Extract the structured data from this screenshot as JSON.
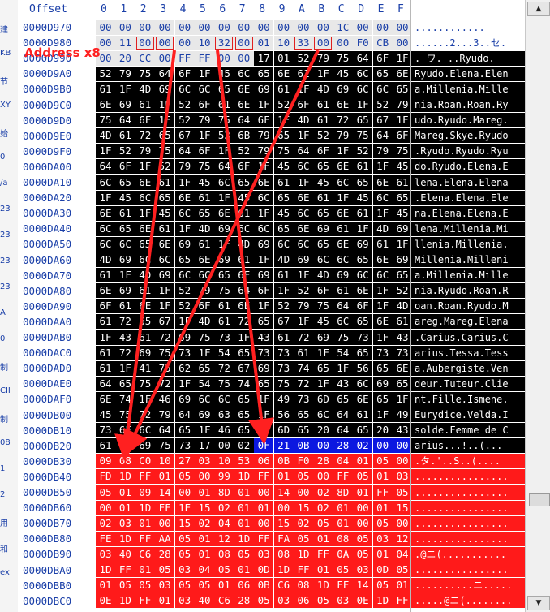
{
  "sidebar_labels": [
    "建",
    "KB",
    "节",
    "XY",
    "始",
    "0",
    "/a",
    "23",
    "23",
    "23",
    "23",
    "A",
    "0",
    "制",
    "CII",
    "制",
    "08",
    "1",
    "2",
    "用",
    "和",
    "ex"
  ],
  "header": {
    "offset_label": "Offset",
    "columns": [
      "0",
      "1",
      "2",
      "3",
      "4",
      "5",
      "6",
      "7",
      "8",
      "9",
      "A",
      "B",
      "C",
      "D",
      "E",
      "F"
    ]
  },
  "annotation": "Address x8",
  "colors": {
    "red": "#ff1a1a",
    "black": "#000000",
    "blue_selection": "#0c18e0",
    "arrow": "#ff2020",
    "address_blue": "#1a3fa8"
  },
  "scrollbar": {
    "up_icon": "up-arrow-icon",
    "down_icon": "down-arrow-icon"
  },
  "rows": [
    {
      "addr": "0000D970",
      "bytes": "00 00 00 00 00 00 00 00 00 00 00 00 1C 00 00 00",
      "ascii": "............",
      "style": "w"
    },
    {
      "addr": "0000D980",
      "bytes": "00 11 00 00 00 10 32 00 01 10 33 00 00 F0 CB 00",
      "ascii": "......2...3..セ.",
      "style": "w"
    },
    {
      "addr": "0000D990",
      "bytes": "00 20 CC 00 FF FF 00 00 17 01 52 79 75 64 6F 1F",
      "ascii": ". ワ.   ..Ryudo.",
      "style": "mixed990"
    },
    {
      "addr": "0000D9A0",
      "bytes": "52 79 75 64 6F 1F 45 6C 65 6E 61 1F 45 6C 65 6E",
      "ascii": "Ryudo.Elena.Elen",
      "style": "k"
    },
    {
      "addr": "0000D9B0",
      "bytes": "61 1F 4D 69 6C 6C 65 6E 69 61 1F 4D 69 6C 6C 65",
      "ascii": "a.Millenia.Mille",
      "style": "k"
    },
    {
      "addr": "0000D9C0",
      "bytes": "6E 69 61 1F 52 6F 61 6E 1F 52 6F 61 6E 1F 52 79",
      "ascii": "nia.Roan.Roan.Ry",
      "style": "k"
    },
    {
      "addr": "0000D9D0",
      "bytes": "75 64 6F 1F 52 79 75 64 6F 1F 4D 61 72 65 67 1F",
      "ascii": "udo.Ryudo.Mareg.",
      "style": "k"
    },
    {
      "addr": "0000D9E0",
      "bytes": "4D 61 72 65 67 1F 53 6B 79 65 1F 52 79 75 64 6F",
      "ascii": "Mareg.Skye.Ryudo",
      "style": "k"
    },
    {
      "addr": "0000D9F0",
      "bytes": "1F 52 79 75 64 6F 1F 52 79 75 64 6F 1F 52 79 75",
      "ascii": ".Ryudo.Ryudo.Ryu",
      "style": "k"
    },
    {
      "addr": "0000DA00",
      "bytes": "64 6F 1F 52 79 75 64 6F 1F 45 6C 65 6E 61 1F 45",
      "ascii": "do.Ryudo.Elena.E",
      "style": "k"
    },
    {
      "addr": "0000DA10",
      "bytes": "6C 65 6E 61 1F 45 6C 65 6E 61 1F 45 6C 65 6E 61",
      "ascii": "lena.Elena.Elena",
      "style": "k"
    },
    {
      "addr": "0000DA20",
      "bytes": "1F 45 6C 65 6E 61 1F 45 6C 65 6E 61 1F 45 6C 65",
      "ascii": ".Elena.Elena.Ele",
      "style": "k"
    },
    {
      "addr": "0000DA30",
      "bytes": "6E 61 1F 45 6C 65 6E 61 1F 45 6C 65 6E 61 1F 45",
      "ascii": "na.Elena.Elena.E",
      "style": "k"
    },
    {
      "addr": "0000DA40",
      "bytes": "6C 65 6E 61 1F 4D 69 6C 6C 65 6E 69 61 1F 4D 69",
      "ascii": "lena.Millenia.Mi",
      "style": "k"
    },
    {
      "addr": "0000DA50",
      "bytes": "6C 6C 65 6E 69 61 1F 4D 69 6C 6C 65 6E 69 61 1F",
      "ascii": "llenia.Millenia.",
      "style": "k"
    },
    {
      "addr": "0000DA60",
      "bytes": "4D 69 6C 6C 65 6E 69 61 1F 4D 69 6C 6C 65 6E 69",
      "ascii": "Millenia.Milleni",
      "style": "k"
    },
    {
      "addr": "0000DA70",
      "bytes": "61 1F 4D 69 6C 6C 65 6E 69 61 1F 4D 69 6C 6C 65",
      "ascii": "a.Millenia.Mille",
      "style": "k"
    },
    {
      "addr": "0000DA80",
      "bytes": "6E 69 61 1F 52 79 75 64 6F 1F 52 6F 61 6E 1F 52",
      "ascii": "nia.Ryudo.Roan.R",
      "style": "k"
    },
    {
      "addr": "0000DA90",
      "bytes": "6F 61 6E 1F 52 6F 61 6E 1F 52 79 75 64 6F 1F 4D",
      "ascii": "oan.Roan.Ryudo.M",
      "style": "k"
    },
    {
      "addr": "0000DAA0",
      "bytes": "61 72 65 67 1F 4D 61 72 65 67 1F 45 6C 65 6E 61",
      "ascii": "areg.Mareg.Elena",
      "style": "k"
    },
    {
      "addr": "0000DAB0",
      "bytes": "1F 43 61 72 69 75 73 1F 43 61 72 69 75 73 1F 43",
      "ascii": ".Carius.Carius.C",
      "style": "k"
    },
    {
      "addr": "0000DAC0",
      "bytes": "61 72 69 75 73 1F 54 65 73 73 61 1F 54 65 73 73",
      "ascii": "arius.Tessa.Tess",
      "style": "k"
    },
    {
      "addr": "0000DAD0",
      "bytes": "61 1F 41 75 62 65 72 67 69 73 74 65 1F 56 65 6E",
      "ascii": "a.Aubergiste.Ven",
      "style": "k"
    },
    {
      "addr": "0000DAE0",
      "bytes": "64 65 75 72 1F 54 75 74 65 75 72 1F 43 6C 69 65",
      "ascii": "deur.Tuteur.Clie",
      "style": "k"
    },
    {
      "addr": "0000DAF0",
      "bytes": "6E 74 1F 46 69 6C 6C 65 1F 49 73 6D 65 6E 65 1F",
      "ascii": "nt.Fille.Ismene.",
      "style": "k"
    },
    {
      "addr": "0000DB00",
      "bytes": "45 75 72 79 64 69 63 65 1F 56 65 6C 64 61 1F 49",
      "ascii": "Eurydice.Velda.I",
      "style": "k"
    },
    {
      "addr": "0000DB10",
      "bytes": "73 6F 6C 64 65 1F 46 65 6D 6D 65 20 64 65 20 43",
      "ascii": "solde.Femme de C",
      "style": "k"
    },
    {
      "addr": "0000DB20",
      "bytes": "61 72 69 75 73 17 00 02 0F 21 0B 00 28 02 00 00",
      "ascii": "arius...!..(...",
      "style": "mixedB20"
    },
    {
      "addr": "0000DB30",
      "bytes": "09 08 C0 10 27 03 10 53 06 0B F0 28 04 01 05 00",
      "ascii": ".タ.'..S..(....",
      "style": "r"
    },
    {
      "addr": "0000DB40",
      "bytes": "FD 1D FF 01 05 00 99 1D FF 01 05 00 FF 05 01 03",
      "ascii": "................",
      "style": "r"
    },
    {
      "addr": "0000DB50",
      "bytes": "05 01 09 14 00 01 8D 01 00 14 00 02 8D 01 FF 05",
      "ascii": "................",
      "style": "r"
    },
    {
      "addr": "0000DB60",
      "bytes": "00 01 1D FF 1E 15 02 01 01 00 15 02 01 00 01 15",
      "ascii": "................",
      "style": "r"
    },
    {
      "addr": "0000DB70",
      "bytes": "02 03 01 00 15 02 04 01 00 15 02 05 01 00 05 00",
      "ascii": "................",
      "style": "r"
    },
    {
      "addr": "0000DB80",
      "bytes": "FE 1D FF AA 05 01 12 1D FF FA 05 01 08 05 03 12",
      "ascii": "................",
      "style": "r"
    },
    {
      "addr": "0000DB90",
      "bytes": "03 40 C6 28 05 01 08 05 03 08 1D FF 0A 05 01 04",
      "ascii": ".@ニ(...........",
      "style": "r"
    },
    {
      "addr": "0000DBA0",
      "bytes": "1D FF 01 05 03 04 05 01 0D 1D FF 01 05 03 0D 05",
      "ascii": "................",
      "style": "r"
    },
    {
      "addr": "0000DBB0",
      "bytes": "01 05 05 03 05 05 01 06 0B C6 08 1D FF 14 05 01",
      "ascii": "..........ニ.....",
      "style": "r"
    },
    {
      "addr": "0000DBC0",
      "bytes": "0E 1D FF 01 03 40 C6 28 05 03 06 05 03 0E 1D FF",
      "ascii": ".....@ニ(........",
      "style": "r"
    }
  ]
}
